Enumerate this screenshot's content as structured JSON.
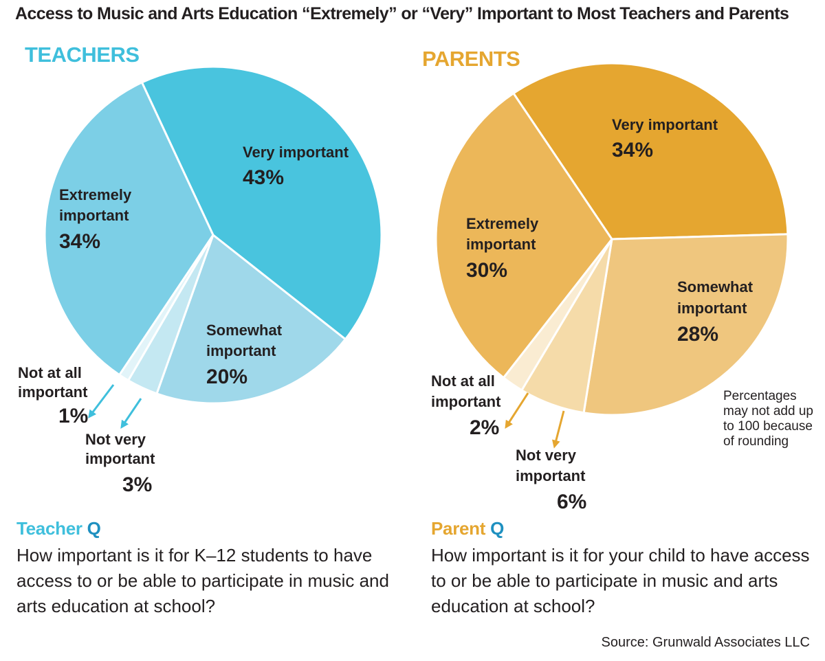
{
  "title": "Access to Music and Arts Education “Extremely” or “Very” Important to Most Teachers and Parents",
  "colors": {
    "teacher_accent": "#3fbfdc",
    "parent_accent": "#e5a630",
    "q_mark": "#1e90c0"
  },
  "chart_data": [
    {
      "type": "pie",
      "title": "TEACHERS",
      "unit": "%",
      "slices": [
        {
          "label": "Very important",
          "value": 43,
          "color": "#49c4de"
        },
        {
          "label": "Somewhat important",
          "value": 20,
          "color": "#9fd8ea"
        },
        {
          "label": "Not very important",
          "value": 3,
          "color": "#c4e8f2"
        },
        {
          "label": "Not at all important",
          "value": 1,
          "color": "#e2f4f9"
        },
        {
          "label": "Extremely important",
          "value": 34,
          "color": "#7ccfe6"
        }
      ],
      "arrow_color": "#3fbfdc"
    },
    {
      "type": "pie",
      "title": "PARENTS",
      "unit": "%",
      "slices": [
        {
          "label": "Very important",
          "value": 34,
          "color": "#e5a630"
        },
        {
          "label": "Somewhat important",
          "value": 28,
          "color": "#efc67e"
        },
        {
          "label": "Not very important",
          "value": 6,
          "color": "#f5dba9"
        },
        {
          "label": "Not at all important",
          "value": 2,
          "color": "#faecd2"
        },
        {
          "label": "Extremely important",
          "value": 30,
          "color": "#ecb759"
        }
      ],
      "arrow_color": "#e5a630",
      "note": "Percentages may not add up to 100 because of rounding"
    }
  ],
  "questions": {
    "teacher": {
      "label": "Teacher",
      "q": "Q",
      "text": "How important is it for K–12 students to have access to or be able to participate in music and arts education at school?"
    },
    "parent": {
      "label": "Parent",
      "q": "Q",
      "text": "How important is it for your child to have access to or be able to participate in music and arts education at school?"
    }
  },
  "source": "Source: Grunwald Associates LLC"
}
